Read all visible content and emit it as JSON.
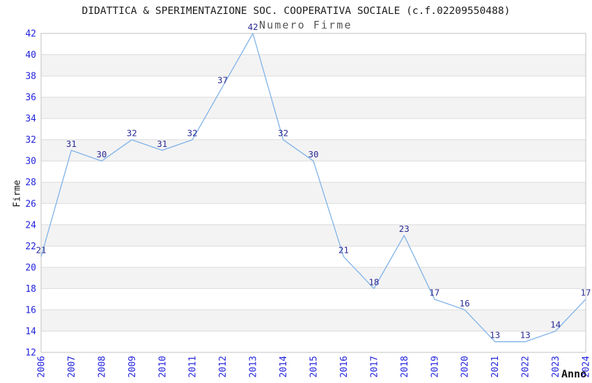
{
  "header": {
    "title": "DIDATTICA & SPERIMENTAZIONE SOC. COOPERATIVA SOCIALE (c.f.02209550488)",
    "subtitle": "Numero Firme"
  },
  "chart_data": {
    "type": "line",
    "title": "DIDATTICA & SPERIMENTAZIONE SOC. COOPERATIVA SOCIALE (c.f.02209550488)",
    "subtitle": "Numero Firme",
    "xlabel": "Anno",
    "ylabel": "Firme",
    "x": [
      "2006",
      "2007",
      "2008",
      "2009",
      "2010",
      "2011",
      "2012",
      "2013",
      "2014",
      "2015",
      "2016",
      "2017",
      "2018",
      "2019",
      "2020",
      "2021",
      "2022",
      "2023",
      "2024"
    ],
    "values": [
      21,
      31,
      30,
      32,
      31,
      32,
      37,
      42,
      32,
      30,
      21,
      18,
      23,
      17,
      16,
      13,
      13,
      14,
      17
    ],
    "point_labels": [
      "21",
      "31",
      "30",
      "32",
      "31",
      "32",
      "37",
      "42",
      "32",
      "30",
      "21",
      "18",
      "23",
      "17",
      "16",
      "13",
      "13",
      "14",
      "17"
    ],
    "ylim": [
      12,
      42
    ],
    "ytick_step": 2,
    "yticks": [
      12,
      14,
      16,
      18,
      20,
      22,
      24,
      26,
      28,
      30,
      32,
      34,
      36,
      38,
      40,
      42
    ],
    "grid": "horizontal alternating bands, gridline at every ytick, no vertical gridlines",
    "legend_position": "none",
    "colors": {
      "line": "#7fb2e8",
      "tick_label": "#2222dd",
      "point_label": "#2b2b96",
      "band": "#f3f3f3",
      "gridline": "#dcdcdc",
      "border": "#c0c0c0",
      "title": "#1c1c1c",
      "subtitle": "#555555",
      "axis_title": "#111111",
      "background": "#ffffff"
    }
  }
}
